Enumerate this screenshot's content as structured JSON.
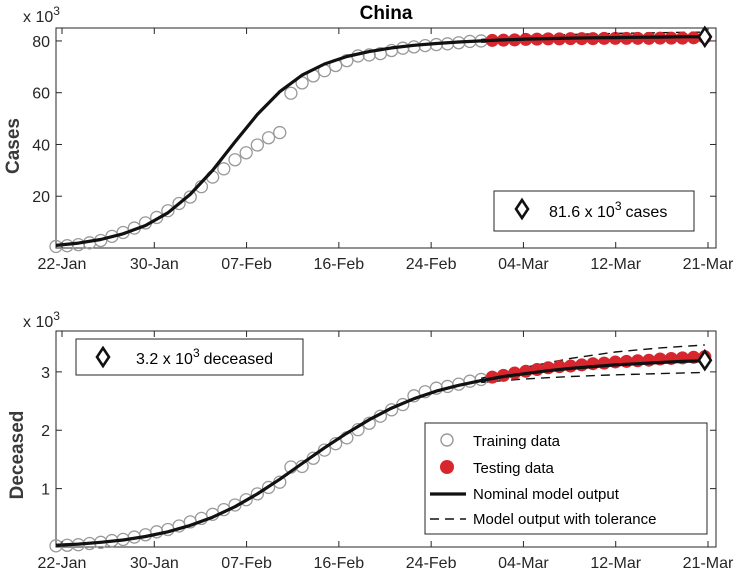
{
  "chart_data": [
    {
      "type": "line",
      "title": "China",
      "ylabel": "Cases",
      "multiplier": "x 10",
      "multiplier_exp": "3",
      "x_ticks": [
        "22-Jan",
        "30-Jan",
        "07-Feb",
        "16-Feb",
        "24-Feb",
        "04-Mar",
        "12-Mar",
        "21-Mar"
      ],
      "y_ticks": [
        20,
        40,
        60,
        80
      ],
      "ylim": [
        0,
        85
      ],
      "xlim_days": [
        0,
        59
      ],
      "training": {
        "x": [
          0,
          1,
          2,
          3,
          4,
          5,
          6,
          7,
          8,
          9,
          10,
          11,
          12,
          13,
          14,
          15,
          16,
          17,
          18,
          19,
          20,
          21,
          22,
          23,
          24,
          25,
          26,
          27,
          28,
          29,
          30,
          31,
          32,
          33,
          34,
          35,
          36,
          37,
          38
        ],
        "y": [
          0.6,
          0.9,
          1.3,
          2.0,
          2.9,
          4.5,
          6.0,
          7.7,
          9.7,
          11.8,
          14.4,
          17.2,
          19.7,
          23.7,
          27.4,
          30.6,
          34.1,
          36.8,
          39.8,
          42.6,
          44.6,
          59.8,
          63.8,
          66.5,
          68.5,
          70.5,
          72.4,
          74.2,
          74.6,
          75.1,
          76.3,
          77.2,
          77.7,
          78.2,
          78.6,
          78.9,
          79.3,
          79.8,
          80.0
        ]
      },
      "testing": {
        "x": [
          39,
          40,
          41,
          42,
          43,
          44,
          45,
          46,
          47,
          48,
          49,
          50,
          51,
          52,
          53,
          54,
          55,
          56,
          57,
          58
        ],
        "y": [
          80.2,
          80.3,
          80.4,
          80.6,
          80.7,
          80.8,
          80.8,
          80.9,
          80.9,
          80.9,
          81.0,
          81.0,
          81.0,
          81.0,
          81.0,
          81.1,
          81.1,
          81.1,
          81.2,
          81.3
        ]
      },
      "nominal": {
        "x": [
          0,
          2,
          4,
          6,
          8,
          10,
          12,
          14,
          16,
          18,
          20,
          22,
          24,
          26,
          28,
          30,
          32,
          34,
          36,
          38,
          40,
          42,
          44,
          46,
          48,
          50,
          52,
          54,
          56,
          58
        ],
        "y": [
          1.0,
          1.9,
          3.3,
          5.5,
          8.7,
          13.6,
          20.7,
          30.0,
          41.0,
          51.6,
          60.4,
          66.8,
          71.1,
          74.0,
          75.9,
          77.3,
          78.3,
          79.0,
          79.6,
          80.0,
          80.4,
          80.7,
          80.9,
          81.1,
          81.2,
          81.3,
          81.4,
          81.5,
          81.6,
          81.6
        ]
      },
      "tol_upper": {
        "x": [
          38,
          42,
          46,
          50,
          54,
          58
        ],
        "y": [
          80.6,
          81.8,
          82.5,
          82.9,
          83.2,
          83.4
        ]
      },
      "tol_lower": {
        "x": [
          38,
          42,
          46,
          50,
          54,
          58
        ],
        "y": [
          79.5,
          79.7,
          79.8,
          79.9,
          80.0,
          80.0
        ]
      },
      "final": {
        "x": 58,
        "y": 81.6
      },
      "annotation": {
        "value": "81.6 x 10",
        "exp": "3",
        "unit": "cases"
      }
    },
    {
      "type": "line",
      "ylabel": "Deceased",
      "multiplier": "x 10",
      "multiplier_exp": "3",
      "x_ticks": [
        "22-Jan",
        "30-Jan",
        "07-Feb",
        "16-Feb",
        "24-Feb",
        "04-Mar",
        "12-Mar",
        "21-Mar"
      ],
      "y_ticks": [
        1,
        2,
        3
      ],
      "ylim": [
        0,
        3.7
      ],
      "xlim_days": [
        0,
        59
      ],
      "training": {
        "x": [
          0,
          1,
          2,
          3,
          4,
          5,
          6,
          7,
          8,
          9,
          10,
          11,
          12,
          13,
          14,
          15,
          16,
          17,
          18,
          19,
          20,
          21,
          22,
          23,
          24,
          25,
          26,
          27,
          28,
          29,
          30,
          31,
          32,
          33,
          34,
          35,
          36,
          37,
          38
        ],
        "y": [
          0.02,
          0.03,
          0.04,
          0.06,
          0.08,
          0.11,
          0.13,
          0.17,
          0.21,
          0.26,
          0.3,
          0.36,
          0.43,
          0.49,
          0.56,
          0.64,
          0.72,
          0.81,
          0.91,
          1.02,
          1.11,
          1.37,
          1.38,
          1.52,
          1.66,
          1.77,
          1.87,
          2.01,
          2.12,
          2.24,
          2.35,
          2.44,
          2.59,
          2.66,
          2.72,
          2.75,
          2.79,
          2.84,
          2.87
        ]
      },
      "testing": {
        "x": [
          39,
          40,
          41,
          42,
          43,
          44,
          45,
          46,
          47,
          48,
          49,
          50,
          51,
          52,
          53,
          54,
          55,
          56,
          57,
          58
        ],
        "y": [
          2.91,
          2.94,
          2.98,
          3.01,
          3.04,
          3.07,
          3.09,
          3.1,
          3.12,
          3.14,
          3.15,
          3.17,
          3.18,
          3.19,
          3.2,
          3.22,
          3.23,
          3.24,
          3.25,
          3.26
        ]
      },
      "nominal": {
        "x": [
          0,
          2,
          4,
          6,
          8,
          10,
          12,
          14,
          16,
          18,
          20,
          22,
          24,
          26,
          28,
          30,
          32,
          34,
          36,
          38,
          40,
          42,
          44,
          46,
          48,
          50,
          52,
          54,
          56,
          58
        ],
        "y": [
          0.03,
          0.05,
          0.08,
          0.12,
          0.18,
          0.26,
          0.37,
          0.51,
          0.69,
          0.91,
          1.16,
          1.43,
          1.7,
          1.95,
          2.18,
          2.38,
          2.54,
          2.67,
          2.77,
          2.85,
          2.92,
          2.97,
          3.02,
          3.06,
          3.09,
          3.12,
          3.14,
          3.16,
          3.18,
          3.19
        ]
      },
      "tol_upper": {
        "x": [
          38,
          42,
          46,
          50,
          54,
          58
        ],
        "y": [
          2.89,
          3.08,
          3.23,
          3.34,
          3.41,
          3.46
        ]
      },
      "tol_lower": {
        "x": [
          38,
          42,
          46,
          50,
          54,
          58
        ],
        "y": [
          2.82,
          2.88,
          2.92,
          2.95,
          2.97,
          2.99
        ]
      },
      "final": {
        "x": 58,
        "y": 3.2
      },
      "annotation": {
        "value": "3.2 x 10",
        "exp": "3",
        "unit": "deceased"
      }
    }
  ],
  "legend": {
    "training": "Training data",
    "testing": "Testing data",
    "nominal": "Nominal model output",
    "tolerance": "Model output with tolerance"
  },
  "colors": {
    "testing": "#d7262e",
    "training": "#999999",
    "line": "#111111",
    "axis": "#262626"
  }
}
